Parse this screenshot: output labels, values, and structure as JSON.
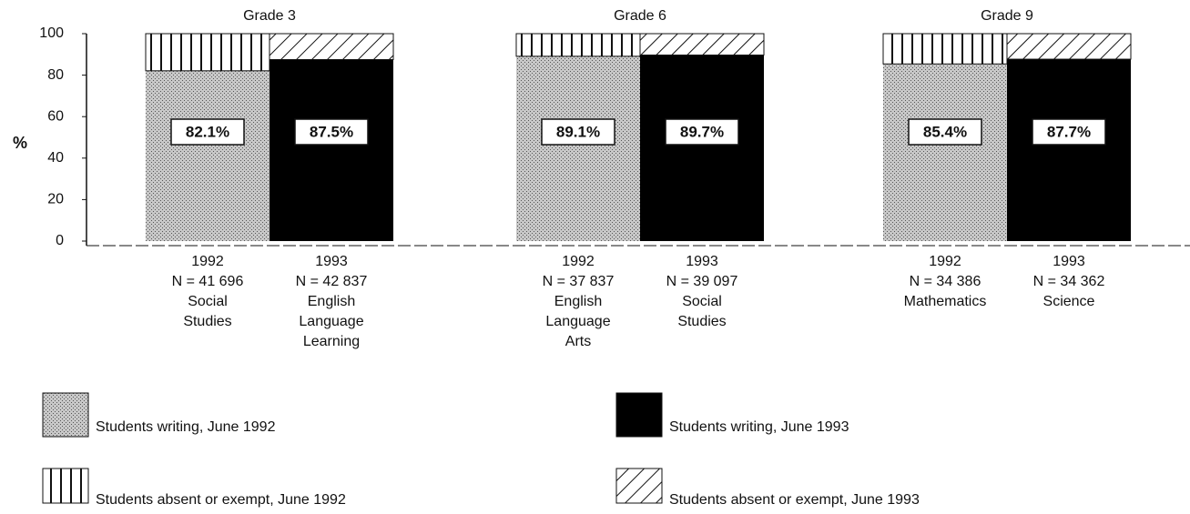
{
  "chart_data": {
    "type": "bar",
    "stacked": true,
    "ylabel": "%",
    "ylim": [
      0,
      100
    ],
    "yticks": [
      0,
      20,
      40,
      60,
      80,
      100
    ],
    "legend": [
      {
        "name": "Students writing, June 1992",
        "pattern": "dots"
      },
      {
        "name": "Students writing, June 1993",
        "pattern": "solid"
      },
      {
        "name": "Students absent or exempt, June 1992",
        "pattern": "vertical"
      },
      {
        "name": "Students absent or exempt, June 1993",
        "pattern": "diagonal"
      }
    ],
    "panels": [
      {
        "title": "Grade 3",
        "bars": [
          {
            "category": "1992",
            "n": "N = 41 696",
            "subject": [
              "Social",
              "Studies"
            ],
            "writing": 82.1,
            "value_label": "82.1%",
            "absent": 17.9,
            "patterns": [
              "dots",
              "vertical"
            ]
          },
          {
            "category": "1993",
            "n": "N = 42 837",
            "subject": [
              "English",
              "Language",
              "Learning"
            ],
            "writing": 87.5,
            "value_label": "87.5%",
            "absent": 12.5,
            "patterns": [
              "solid",
              "diagonal"
            ]
          }
        ]
      },
      {
        "title": "Grade 6",
        "bars": [
          {
            "category": "1992",
            "n": "N = 37 837",
            "subject": [
              "English",
              "Language",
              "Arts"
            ],
            "writing": 89.1,
            "value_label": "89.1%",
            "absent": 10.9,
            "patterns": [
              "dots",
              "vertical"
            ]
          },
          {
            "category": "1993",
            "n": "N = 39 097",
            "subject": [
              "Social",
              "Studies"
            ],
            "writing": 89.7,
            "value_label": "89.7%",
            "absent": 10.3,
            "patterns": [
              "solid",
              "diagonal"
            ]
          }
        ]
      },
      {
        "title": "Grade 9",
        "bars": [
          {
            "category": "1992",
            "n": "N = 34 386",
            "subject": [
              "Mathematics"
            ],
            "writing": 85.4,
            "value_label": "85.4%",
            "absent": 14.6,
            "patterns": [
              "dots",
              "vertical"
            ]
          },
          {
            "category": "1993",
            "n": "N = 34 362",
            "subject": [
              "Science"
            ],
            "writing": 87.7,
            "value_label": "87.7%",
            "absent": 12.3,
            "patterns": [
              "solid",
              "diagonal"
            ]
          }
        ]
      }
    ]
  }
}
